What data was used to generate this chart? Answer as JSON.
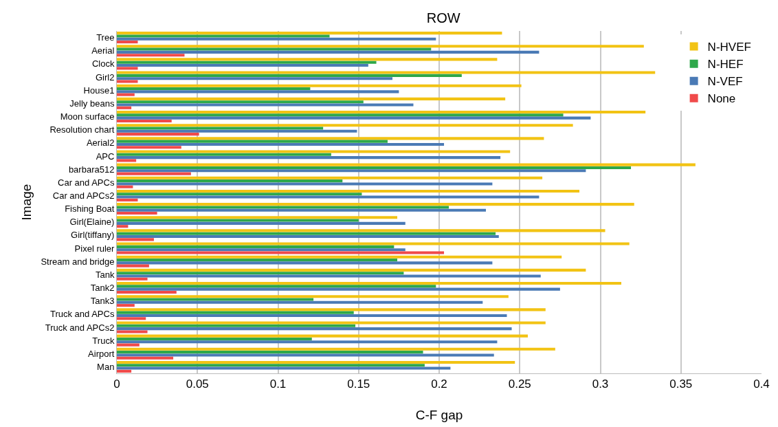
{
  "chart_data": {
    "type": "bar",
    "orientation": "horizontal",
    "title": "ROW",
    "xlabel": "C-F gap",
    "ylabel": "Image",
    "categories": [
      "Tree",
      "Aerial",
      "Clock",
      "Girl2",
      "House1",
      "Jelly beans",
      "Moon surface",
      "Resolution chart",
      "Aerial2",
      "APC",
      "barbara512",
      "Car and APCs",
      "Car and APCs2",
      "Fishing Boat",
      "Girl(Elaine)",
      "Girl(tiffany)",
      "Pixel ruler",
      "Stream and bridge",
      "Tank",
      "Tank2",
      "Tank3",
      "Truck and APCs",
      "Truck and APCs2",
      "Truck",
      "Airport",
      "Man"
    ],
    "series": [
      {
        "name": "N-HVEF",
        "color": "#f2c314",
        "values": [
          0.239,
          0.327,
          0.236,
          0.334,
          0.251,
          0.241,
          0.328,
          0.283,
          0.265,
          0.244,
          0.359,
          0.264,
          0.287,
          0.321,
          0.174,
          0.303,
          0.318,
          0.276,
          0.291,
          0.313,
          0.243,
          0.266,
          0.266,
          0.255,
          0.272,
          0.247
        ]
      },
      {
        "name": "N-HEF",
        "color": "#2ea84a",
        "values": [
          0.132,
          0.195,
          0.161,
          0.214,
          0.12,
          0.153,
          0.277,
          0.128,
          0.168,
          0.133,
          0.319,
          0.14,
          0.152,
          0.206,
          0.15,
          0.235,
          0.172,
          0.174,
          0.178,
          0.198,
          0.122,
          0.147,
          0.148,
          0.121,
          0.19,
          0.191
        ]
      },
      {
        "name": "N-VEF",
        "color": "#4a7ab5",
        "values": [
          0.198,
          0.262,
          0.156,
          0.171,
          0.175,
          0.184,
          0.294,
          0.149,
          0.203,
          0.238,
          0.291,
          0.233,
          0.262,
          0.229,
          0.179,
          0.237,
          0.179,
          0.233,
          0.263,
          0.275,
          0.227,
          0.242,
          0.245,
          0.236,
          0.234,
          0.207
        ]
      },
      {
        "name": "None",
        "color": "#f04a4a",
        "values": [
          0.013,
          0.042,
          0.013,
          0.013,
          0.011,
          0.009,
          0.034,
          0.051,
          0.04,
          0.012,
          0.046,
          0.01,
          0.013,
          0.025,
          0.007,
          0.023,
          0.203,
          0.02,
          0.019,
          0.037,
          0.011,
          0.018,
          0.019,
          0.014,
          0.035,
          0.009
        ]
      }
    ],
    "xlim": [
      0,
      0.4
    ],
    "xticks": [
      0,
      0.05,
      0.1,
      0.15,
      0.2,
      0.25,
      0.3,
      0.35,
      0.4
    ],
    "grid": "x",
    "legend": "top right"
  }
}
